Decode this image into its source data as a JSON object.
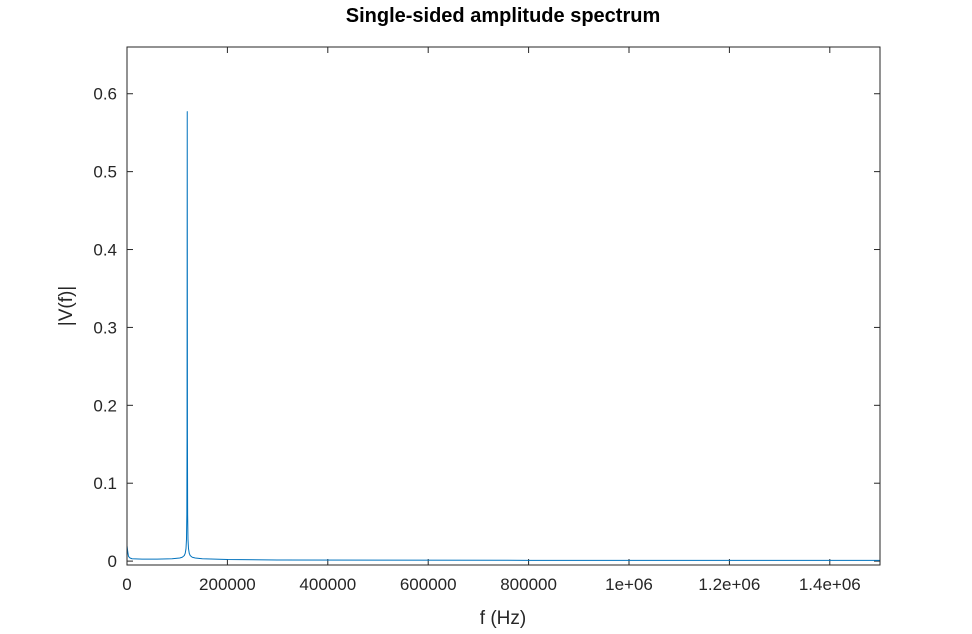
{
  "chart_data": {
    "type": "line",
    "title": "Single-sided amplitude spectrum",
    "xlabel": "f (Hz)",
    "ylabel": "|V(f)|",
    "xlim": [
      0,
      1500000
    ],
    "ylim": [
      -0.005,
      0.66
    ],
    "x_ticks": [
      0,
      200000,
      400000,
      600000,
      800000,
      1000000,
      1200000,
      1400000
    ],
    "x_tick_labels": [
      "0",
      "200000",
      "400000",
      "600000",
      "800000",
      "1e+06",
      "1.2e+06",
      "1.4e+06"
    ],
    "y_ticks": [
      0,
      0.1,
      0.2,
      0.3,
      0.4,
      0.5,
      0.6
    ],
    "y_tick_labels": [
      "0",
      "0.1",
      "0.2",
      "0.3",
      "0.4",
      "0.5",
      "0.6"
    ],
    "grid": false,
    "series": [
      {
        "color": "#0072bd",
        "x": [
          0,
          1500,
          3000,
          6000,
          10000,
          30000,
          60000,
          90000,
          105000,
          110000,
          114000,
          116000,
          117500,
          118500,
          119200,
          119600,
          120000,
          120400,
          120800,
          121500,
          122500,
          124000,
          126000,
          130000,
          136000,
          150000,
          200000,
          300000,
          500000,
          800000,
          1000000,
          1200000,
          1400000,
          1500000
        ],
        "values": [
          0.02,
          0.012,
          0.006,
          0.004,
          0.003,
          0.0025,
          0.0025,
          0.003,
          0.004,
          0.005,
          0.007,
          0.01,
          0.016,
          0.028,
          0.06,
          0.16,
          0.577,
          0.16,
          0.06,
          0.028,
          0.016,
          0.01,
          0.007,
          0.005,
          0.004,
          0.003,
          0.002,
          0.0015,
          0.0012,
          0.001,
          0.001,
          0.001,
          0.001,
          0.001
        ]
      }
    ]
  }
}
